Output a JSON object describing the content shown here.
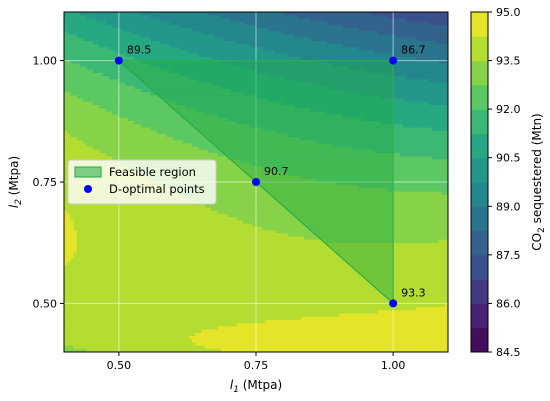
{
  "chart_data": {
    "type": "contour",
    "xlabel": "l",
    "xlabel_sub": "1",
    "xlabel_unit": " (Mtpa)",
    "ylabel": "l",
    "ylabel_sub": "2",
    "ylabel_unit": " (Mtpa)",
    "xlim": [
      0.4,
      1.1
    ],
    "ylim": [
      0.4,
      1.1
    ],
    "xticks": [
      "0.50",
      "0.75",
      "1.00"
    ],
    "xtick_values": [
      0.5,
      0.75,
      1.0
    ],
    "yticks": [
      "0.50",
      "0.75",
      "1.00"
    ],
    "ytick_values": [
      0.5,
      0.75,
      1.0
    ],
    "grid": true,
    "colorbar": {
      "label": "CO",
      "label_sub": "2",
      "label_rest": " sequestered (Mtn)",
      "min": 84.5,
      "max": 95.0,
      "ticks": [
        "84.5",
        "86.0",
        "87.5",
        "89.0",
        "90.5",
        "92.0",
        "93.5",
        "95.0"
      ],
      "tick_values": [
        84.5,
        86.0,
        87.5,
        89.0,
        90.5,
        92.0,
        93.5,
        95.0
      ],
      "colormap": "viridis"
    },
    "feasible_region": {
      "name": "Feasible region",
      "vertices": [
        [
          0.5,
          1.0
        ],
        [
          1.0,
          1.0
        ],
        [
          1.0,
          0.5
        ]
      ],
      "color": "#22a844"
    },
    "points": {
      "name": "D-optimal points",
      "color": "#0000ff",
      "data": [
        {
          "x": 0.5,
          "y": 1.0,
          "label": "89.5"
        },
        {
          "x": 1.0,
          "y": 1.0,
          "label": "86.7"
        },
        {
          "x": 0.75,
          "y": 0.75,
          "label": "90.7"
        },
        {
          "x": 1.0,
          "y": 0.5,
          "label": "93.3"
        }
      ]
    },
    "legend_position": "center-left"
  }
}
